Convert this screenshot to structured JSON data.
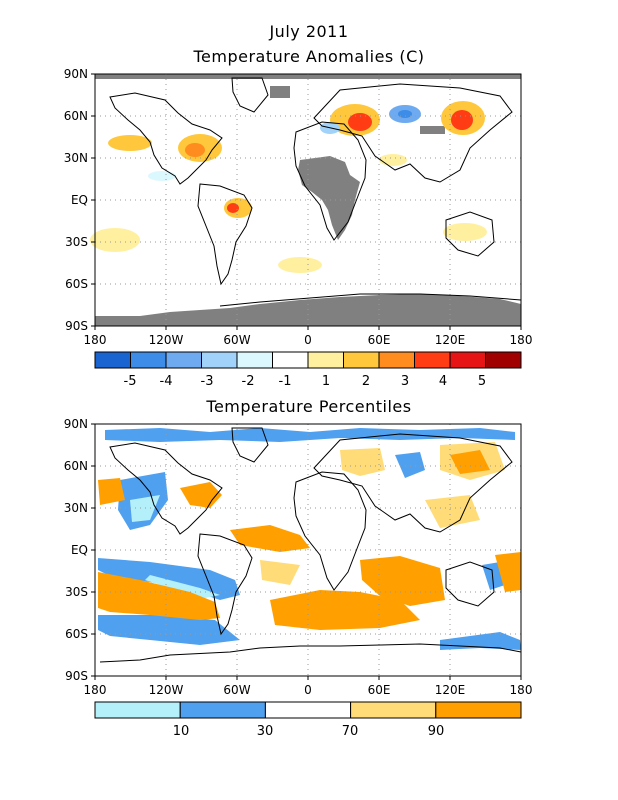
{
  "header": {
    "date": "July 2011",
    "anomaly_title": "Temperature Anomalies (C)",
    "percentile_title": "Temperature Percentiles"
  },
  "axes": {
    "lat_labels": [
      "90N",
      "60N",
      "30N",
      "EQ",
      "30S",
      "60S",
      "90S"
    ],
    "lon_labels": [
      "180",
      "120W",
      "60W",
      "0",
      "60E",
      "120E",
      "180"
    ]
  },
  "anomaly_colorbar": {
    "colors": [
      "#1a64d2",
      "#3c8ce8",
      "#6eaaf0",
      "#a0d2fa",
      "#dcf8ff",
      "#ffffff",
      "#fff0a0",
      "#ffc83c",
      "#ff8c1e",
      "#ff3c14",
      "#e61414",
      "#a00000"
    ],
    "labels": [
      "-5",
      "-4",
      "-3",
      "-2",
      "-1",
      "1",
      "2",
      "3",
      "4",
      "5"
    ]
  },
  "percentile_colorbar": {
    "colors": [
      "#b4f0fa",
      "#50a0f0",
      "#ffffff",
      "#ffdc78",
      "#ffa000"
    ],
    "labels": [
      "10",
      "30",
      "70",
      "90"
    ]
  },
  "map_colors": {
    "missing": "#808080",
    "warm": "#ffc83c",
    "light_warm": "#fff0a0",
    "cool": "#a0d2fa",
    "strong_warm": "#ff3c14",
    "strong_cool": "#1a64d2",
    "pct_cold": "#50a0f0",
    "pct_coldest": "#b4f0fa",
    "pct_warm": "#ffdc78",
    "pct_warmest": "#ffa000"
  }
}
